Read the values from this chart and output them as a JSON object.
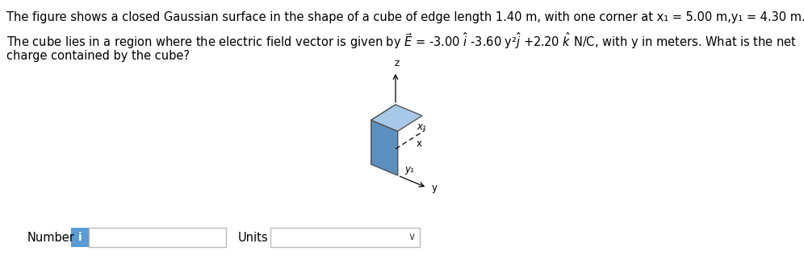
{
  "line1": "The figure shows a closed Gaussian surface in the shape of a cube of edge length 1.40 m, with one corner at x₁ = 5.00 m,y₁ = 4.30 m.",
  "line2_plain": "The cube lies in a region where the electric field vector is given by ",
  "line2_math": "$\\vec{E}$ = -3.00 $\\hat{i}$ -3.60 y²$\\hat{j}$ +2.20 $\\hat{k}$ N/C, with y in meters. What is the net",
  "line3": "charge contained by the cube?",
  "number_label": "Number",
  "units_label": "Units",
  "cube_front_color": "#7badd4",
  "cube_right_color": "#5a8fbf",
  "cube_top_color": "#a8c8e8",
  "cube_edge_color": "#555555",
  "bg_color": "#ffffff",
  "info_btn_color": "#5b9bd5",
  "text_fontsize": 10.5,
  "small_fontsize": 8.5
}
